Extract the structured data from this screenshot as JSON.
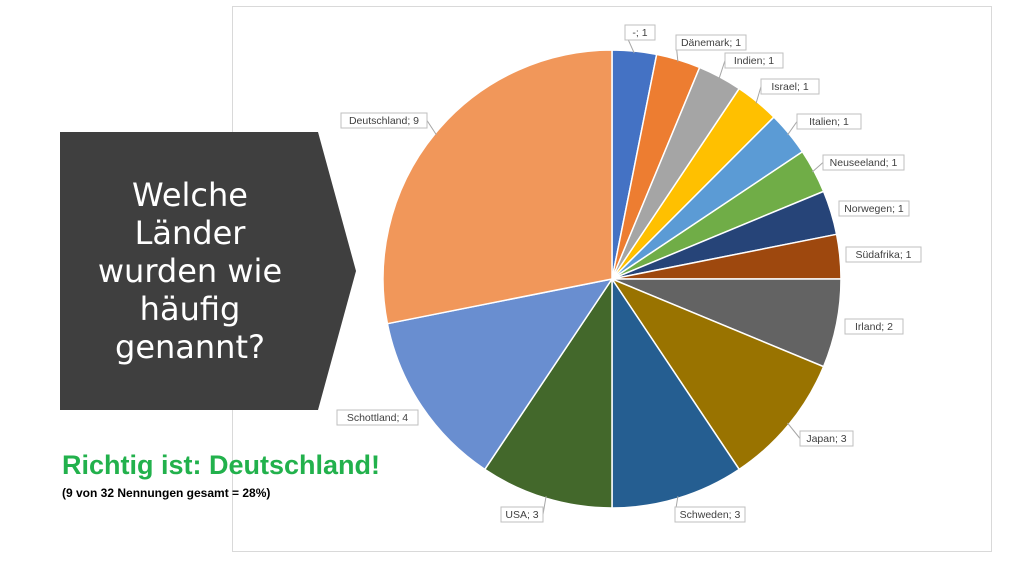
{
  "callout": {
    "lines": [
      "Welche",
      "Länder",
      "wurden wie",
      "häufig",
      "genannt?"
    ],
    "color": "#3f3f3f"
  },
  "answer": {
    "text": "Richtig ist: Deutschland!",
    "note": "(9 von 32 Nennungen gesamt = 28%)",
    "color": "#22b14c"
  },
  "chart_data": {
    "type": "pie",
    "title": "",
    "slices": [
      {
        "label": "-",
        "value": 1,
        "color": "#4472c4"
      },
      {
        "label": "Dänemark",
        "value": 1,
        "color": "#ed7d31"
      },
      {
        "label": "Indien",
        "value": 1,
        "color": "#a5a5a5"
      },
      {
        "label": "Israel",
        "value": 1,
        "color": "#ffc000"
      },
      {
        "label": "Italien",
        "value": 1,
        "color": "#5b9bd5"
      },
      {
        "label": "Neuseeland",
        "value": 1,
        "color": "#70ad47"
      },
      {
        "label": "Norwegen",
        "value": 1,
        "color": "#264478"
      },
      {
        "label": "Südafrika",
        "value": 1,
        "color": "#9e480e"
      },
      {
        "label": "Irland",
        "value": 2,
        "color": "#636363"
      },
      {
        "label": "Japan",
        "value": 3,
        "color": "#997300"
      },
      {
        "label": "Schweden",
        "value": 3,
        "color": "#255e91"
      },
      {
        "label": "USA",
        "value": 3,
        "color": "#43682b"
      },
      {
        "label": "Schottland",
        "value": 4,
        "color": "#698ed0"
      },
      {
        "label": "Deutschland",
        "value": 9,
        "color": "#f1975a"
      }
    ],
    "label_format": "{label}; {value}",
    "start_angle": "12 o'clock",
    "direction": "clockwise"
  }
}
